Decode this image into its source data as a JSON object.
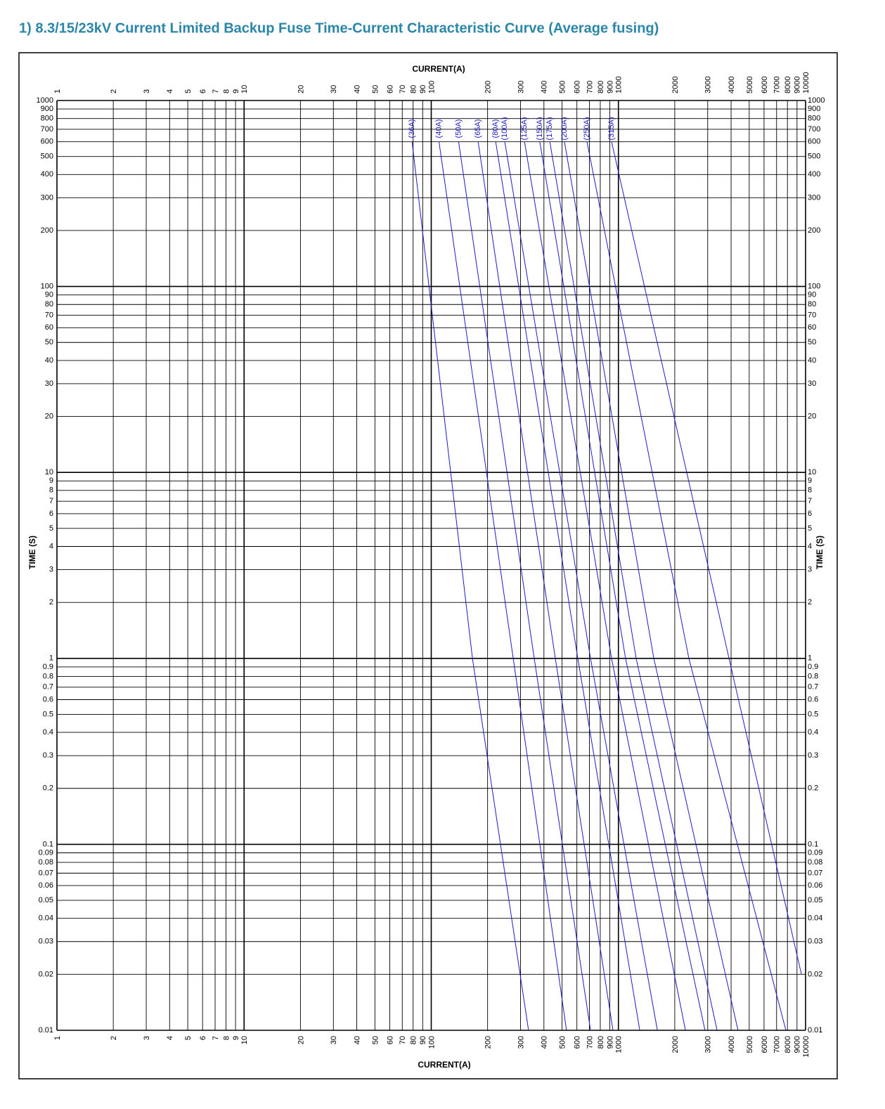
{
  "chart_data": {
    "type": "line",
    "title": "1)  8.3/15/23kV Current Limited Backup Fuse Time-Current Characteristic Curve (Average fusing)",
    "xlabel": "CURRENT(A)",
    "ylabel": "TIME (S)",
    "xscale": "log",
    "yscale": "log",
    "grid": true,
    "xlim": [
      1,
      10000
    ],
    "ylim": [
      0.01,
      1000
    ],
    "xticks": [
      1,
      2,
      3,
      4,
      5,
      6,
      7,
      8,
      9,
      10,
      20,
      30,
      40,
      50,
      60,
      70,
      80,
      90,
      100,
      200,
      300,
      400,
      500,
      600,
      700,
      800,
      900,
      1000,
      2000,
      3000,
      4000,
      5000,
      6000,
      7000,
      8000,
      9000,
      10000
    ],
    "yticks": [
      0.01,
      0.02,
      0.03,
      0.04,
      0.05,
      0.06,
      0.07,
      0.08,
      0.09,
      0.1,
      0.2,
      0.3,
      0.4,
      0.5,
      0.6,
      0.7,
      0.8,
      0.9,
      1,
      2,
      3,
      4,
      5,
      6,
      7,
      8,
      9,
      10,
      20,
      30,
      40,
      50,
      60,
      70,
      80,
      90,
      100,
      200,
      300,
      400,
      500,
      600,
      700,
      800,
      900,
      1000
    ],
    "series": [
      {
        "name": "(36A)",
        "color": "#1c1cc8",
        "x": [
          79,
          166,
          331
        ],
        "values": [
          600,
          1,
          0.01
        ]
      },
      {
        "name": "(40A)",
        "color": "#1c1cc8",
        "x": [
          110,
          274,
          528
        ],
        "values": [
          600,
          1,
          0.01
        ]
      },
      {
        "name": "(50A)",
        "color": "#1c1cc8",
        "x": [
          140,
          355,
          710
        ],
        "values": [
          600,
          1,
          0.01
        ]
      },
      {
        "name": "(65A)",
        "color": "#1c1cc8",
        "x": [
          178,
          460,
          935
        ],
        "values": [
          600,
          1,
          0.01
        ]
      },
      {
        "name": "(80A)",
        "color": "#1c1cc8",
        "x": [
          221,
          607,
          1300
        ],
        "values": [
          600,
          1,
          0.01
        ]
      },
      {
        "name": "(100A)",
        "color": "#1c1cc8",
        "x": [
          247,
          710,
          1615
        ],
        "values": [
          600,
          1,
          0.01
        ]
      },
      {
        "name": "(125A)",
        "color": "#1c1cc8",
        "x": [
          315,
          919,
          2280
        ],
        "values": [
          600,
          1,
          0.01
        ]
      },
      {
        "name": "(150A)",
        "color": "#1c1cc8",
        "x": [
          380,
          1092,
          2900
        ],
        "values": [
          600,
          1,
          0.01
        ]
      },
      {
        "name": "(175A)",
        "color": "#1c1cc8",
        "x": [
          430,
          1244,
          3365
        ],
        "values": [
          600,
          1,
          0.01
        ]
      },
      {
        "name": "(200A)",
        "color": "#1c1cc8",
        "x": [
          515,
          1545,
          4355
        ],
        "values": [
          600,
          1,
          0.01
        ]
      },
      {
        "name": "(250A)",
        "color": "#1c1cc8",
        "x": [
          679,
          2380,
          7850
        ],
        "values": [
          600,
          1,
          0.01
        ]
      },
      {
        "name": "(315A)",
        "color": "#1c1cc8",
        "x": [
          919,
          3900,
          9500
        ],
        "values": [
          600,
          1,
          0.02
        ]
      }
    ]
  }
}
